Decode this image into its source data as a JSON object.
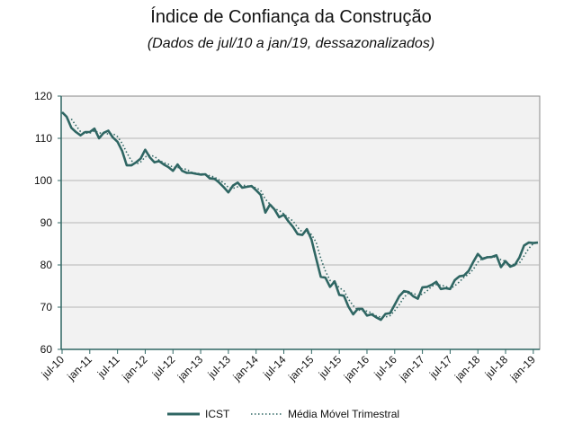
{
  "chart_data": {
    "type": "line",
    "title": "Índice de Confiança da Construção",
    "subtitle": "(Dados de jul/10 a jan/19, dessazonalizados)",
    "xlabel": "",
    "ylabel": "",
    "x_start": "jul-10",
    "x_end": "jan-19",
    "x_frequency": "monthly",
    "x_tick_labels": [
      "jul-10",
      "jan-11",
      "jul-11",
      "jan-12",
      "jul-12",
      "jan-13",
      "jul-13",
      "jan-14",
      "jul-14",
      "jan-15",
      "jul-15",
      "jan-16",
      "jul-16",
      "jan-17",
      "jul-17",
      "jan-18",
      "jul-18",
      "jan-19"
    ],
    "ylim": [
      60,
      120
    ],
    "y_ticks": [
      60,
      70,
      80,
      90,
      100,
      110,
      120
    ],
    "grid": "horizontal",
    "legend_position": "bottom",
    "series": [
      {
        "name": "ICST",
        "style": "solid",
        "color": "#2f6663",
        "values": [
          116.2,
          115.1,
          112.5,
          111.5,
          110.7,
          111.5,
          111.5,
          112.3,
          110.0,
          111.3,
          111.8,
          110.2,
          109.2,
          107.0,
          103.6,
          103.6,
          104.3,
          105.2,
          107.3,
          105.5,
          104.3,
          104.6,
          103.8,
          103.2,
          102.3,
          103.8,
          102.3,
          101.8,
          101.8,
          101.6,
          101.4,
          101.5,
          100.5,
          100.4,
          99.5,
          98.4,
          97.2,
          98.8,
          99.5,
          98.3,
          98.5,
          98.7,
          97.7,
          96.6,
          92.4,
          94.3,
          93.1,
          91.3,
          91.9,
          90.3,
          89.0,
          87.3,
          87.1,
          88.5,
          86.0,
          81.5,
          77.2,
          77.0,
          74.8,
          76.1,
          72.9,
          72.7,
          70.1,
          68.3,
          69.6,
          69.6,
          68.0,
          68.3,
          67.6,
          67.0,
          68.4,
          68.6,
          70.6,
          72.6,
          73.8,
          73.6,
          72.6,
          72.0,
          74.7,
          74.8,
          75.3,
          76.0,
          74.3,
          74.5,
          74.3,
          76.4,
          77.3,
          77.5,
          78.6,
          80.7,
          82.6,
          81.4,
          81.8,
          81.9,
          82.3,
          79.5,
          80.9,
          79.6,
          80.0,
          81.8,
          84.6,
          85.3,
          85.2,
          85.3
        ]
      },
      {
        "name": "Média Móvel Trimestral",
        "style": "dotted",
        "color": "#2f6663",
        "derived_from": "ICST, 3-month moving average"
      }
    ]
  }
}
